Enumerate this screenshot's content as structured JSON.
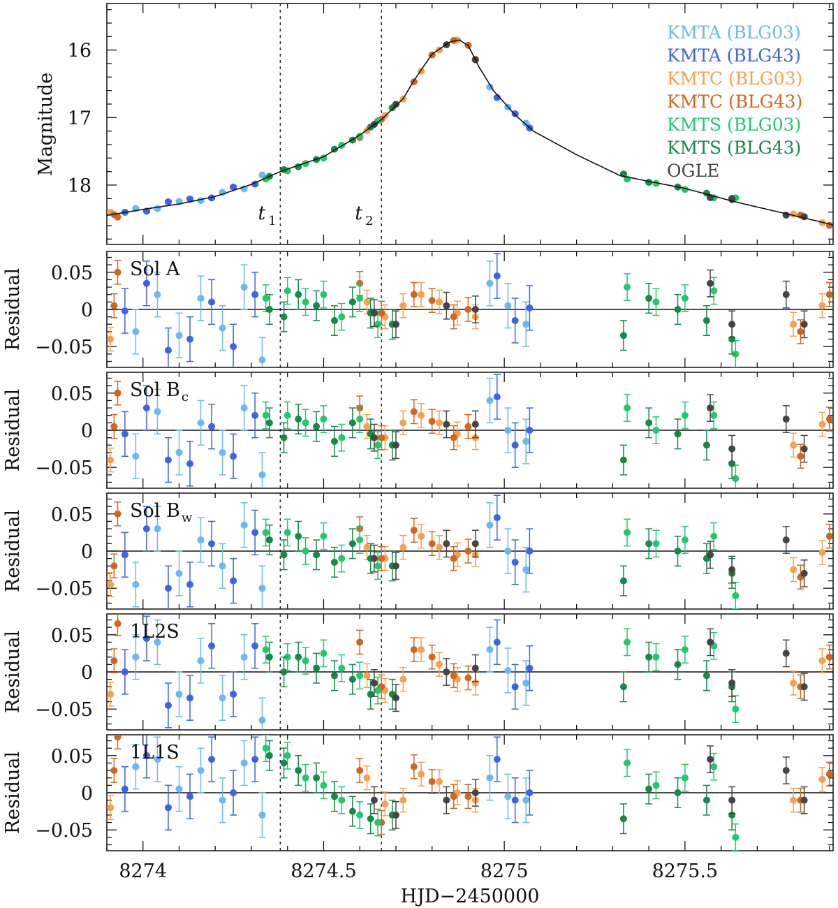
{
  "chart_data": {
    "type": "scatter",
    "title": "",
    "xlabel": "HJD−2450000",
    "xlim": [
      8273.9,
      8275.91
    ],
    "x_ticks": [
      8274,
      8274.5,
      8275,
      8275.5
    ],
    "x_tick_labels": [
      "8274",
      "8274.5",
      "8275",
      "8275.5"
    ],
    "main_panel": {
      "ylabel": "Magnitude",
      "ylim": [
        18.88,
        15.31
      ],
      "y_ticks": [
        16,
        17,
        18
      ],
      "y_tick_labels": [
        "16",
        "17",
        "18"
      ],
      "model_curve": [
        [
          8273.9,
          18.45
        ],
        [
          8274.0,
          18.36
        ],
        [
          8274.1,
          18.28
        ],
        [
          8274.2,
          18.17
        ],
        [
          8274.3,
          17.99
        ],
        [
          8274.38,
          17.8
        ],
        [
          8274.5,
          17.58
        ],
        [
          8274.6,
          17.26
        ],
        [
          8274.66,
          17.03
        ],
        [
          8274.72,
          16.72
        ],
        [
          8274.75,
          16.45
        ],
        [
          8274.8,
          16.06
        ],
        [
          8274.85,
          15.88
        ],
        [
          8274.875,
          15.85
        ],
        [
          8274.9,
          15.93
        ],
        [
          8274.93,
          16.25
        ],
        [
          8274.97,
          16.6
        ],
        [
          8275.03,
          16.96
        ],
        [
          8275.08,
          17.2
        ],
        [
          8275.2,
          17.55
        ],
        [
          8275.32,
          17.86
        ],
        [
          8275.5,
          18.05
        ],
        [
          8275.64,
          18.25
        ],
        [
          8275.8,
          18.45
        ],
        [
          8275.91,
          18.59
        ]
      ],
      "annotations": [
        {
          "text": "t",
          "sub": "1",
          "x": 8274.38
        },
        {
          "text": "t",
          "sub": "2",
          "x": 8274.66
        }
      ],
      "legend_position": "top-right"
    },
    "residual_panels": [
      {
        "key": "A",
        "label": "Sol A",
        "sub": ""
      },
      {
        "key": "Bc",
        "label": "Sol B",
        "sub": "c"
      },
      {
        "key": "Bw",
        "label": "Sol B",
        "sub": "w"
      },
      {
        "key": "L2S",
        "label": "1L2S",
        "sub": ""
      },
      {
        "key": "L1S",
        "label": "1L1S",
        "sub": ""
      }
    ],
    "residual_ylabel": "Residual",
    "residual_ylim": [
      -0.078,
      0.078
    ],
    "residual_y_ticks": [
      0.05,
      0,
      -0.05
    ],
    "residual_y_tick_labels": [
      "0.05",
      "0",
      "−0.05"
    ],
    "vertical_lines": [
      8274.38,
      8274.66
    ],
    "series": [
      {
        "name": "KMTA (BLG03)",
        "color": "#6ab8f7",
        "err": 0.03,
        "t": [
          8273.98,
          8274.04,
          8274.1,
          8274.16,
          8274.22,
          8274.28,
          8274.33,
          8274.96,
          8275.01,
          8275.06
        ],
        "res": {
          "A": [
            -0.03,
            0.02,
            -0.035,
            0.015,
            -0.025,
            0.03,
            -0.068,
            0.035,
            0.005,
            -0.02
          ],
          "Bc": [
            -0.035,
            0.025,
            -0.03,
            0.01,
            -0.03,
            0.03,
            -0.06,
            0.04,
            0.0,
            -0.015
          ],
          "Bw": [
            -0.045,
            0.03,
            -0.03,
            0.015,
            -0.02,
            0.035,
            -0.05,
            0.035,
            0.0,
            -0.025
          ],
          "L2S": [
            0.02,
            0.04,
            -0.03,
            0.015,
            -0.035,
            0.02,
            -0.065,
            0.03,
            0.002,
            -0.015
          ],
          "L1S": [
            0.035,
            0.045,
            0.005,
            0.03,
            -0.01,
            0.04,
            -0.03,
            0.02,
            -0.005,
            -0.01
          ]
        }
      },
      {
        "name": "KMTA (BLG43)",
        "color": "#3c64e4",
        "err": 0.03,
        "t": [
          8273.95,
          8274.01,
          8274.07,
          8274.13,
          8274.19,
          8274.25,
          8274.31,
          8274.98,
          8275.03,
          8275.07
        ],
        "res": {
          "A": [
            -0.002,
            0.035,
            -0.055,
            -0.04,
            0.01,
            -0.05,
            0.02,
            0.045,
            -0.015,
            0.002
          ],
          "Bc": [
            -0.005,
            0.03,
            -0.04,
            -0.045,
            0.005,
            -0.035,
            0.02,
            0.045,
            -0.02,
            0.0
          ],
          "Bw": [
            -0.005,
            0.03,
            -0.05,
            -0.045,
            0.01,
            -0.04,
            0.025,
            0.045,
            -0.015,
            0.0
          ],
          "L2S": [
            0.0,
            0.045,
            -0.045,
            -0.035,
            0.035,
            -0.03,
            0.035,
            0.04,
            -0.02,
            0.005
          ],
          "L1S": [
            0.005,
            0.05,
            -0.02,
            -0.005,
            0.045,
            0.0,
            0.045,
            0.045,
            -0.01,
            0.0
          ]
        }
      },
      {
        "name": "KMTC (BLG03)",
        "color": "#f7a050",
        "err": 0.016,
        "t": [
          8273.91,
          8274.62,
          8274.67,
          8274.72,
          8274.77,
          8274.82,
          8274.87,
          8274.92,
          8275.8,
          8275.88
        ],
        "res": {
          "A": [
            -0.04,
            0.01,
            -0.01,
            0.005,
            0.02,
            0.01,
            -0.005,
            -0.01,
            -0.02,
            0.005
          ],
          "Bc": [
            -0.04,
            0.005,
            -0.01,
            0.01,
            0.02,
            0.01,
            -0.005,
            -0.01,
            -0.02,
            0.008
          ],
          "Bw": [
            -0.045,
            0.005,
            -0.01,
            0.005,
            0.02,
            0.005,
            -0.005,
            -0.005,
            -0.025,
            -0.002
          ],
          "L2S": [
            -0.03,
            -0.005,
            -0.025,
            -0.01,
            0.03,
            0.01,
            -0.01,
            -0.015,
            -0.015,
            0.015
          ],
          "L1S": [
            -0.02,
            0.02,
            -0.015,
            -0.01,
            0.025,
            0.015,
            0.0,
            -0.01,
            -0.01,
            0.018
          ]
        }
      },
      {
        "name": "KMTC (BLG43)",
        "color": "#d2661f",
        "err": 0.016,
        "t": [
          8273.92,
          8273.93,
          8274.6,
          8274.66,
          8274.75,
          8274.8,
          8274.86,
          8274.9,
          8275.82,
          8275.9
        ],
        "res": {
          "A": [
            0.005,
            0.05,
            0.035,
            -0.005,
            0.02,
            0.012,
            -0.01,
            0.0,
            -0.03,
            0.02
          ],
          "Bc": [
            0.005,
            0.05,
            0.03,
            -0.01,
            0.025,
            0.012,
            -0.01,
            0.005,
            -0.035,
            0.015
          ],
          "Bw": [
            -0.02,
            0.05,
            0.03,
            -0.01,
            0.028,
            0.01,
            -0.01,
            0.0,
            -0.035,
            0.02
          ],
          "L2S": [
            0.015,
            0.065,
            0.04,
            -0.02,
            0.03,
            0.02,
            -0.005,
            -0.008,
            -0.02,
            0.02
          ],
          "L1S": [
            0.03,
            0.075,
            0.03,
            -0.04,
            0.035,
            0.015,
            -0.005,
            -0.005,
            -0.01,
            0.025
          ]
        }
      },
      {
        "name": "KMTS (BLG03)",
        "color": "#22c86e",
        "err": 0.018,
        "t": [
          8274.34,
          8274.4,
          8274.45,
          8274.5,
          8274.55,
          8274.6,
          8274.65,
          8275.34,
          8275.42,
          8275.5,
          8275.58,
          8275.64
        ],
        "res": {
          "A": [
            0.015,
            0.025,
            0.01,
            0.02,
            -0.01,
            0.015,
            -0.02,
            0.03,
            0.01,
            0.015,
            0.025,
            -0.06
          ],
          "Bc": [
            0.02,
            0.02,
            0.01,
            0.015,
            -0.01,
            0.015,
            -0.02,
            0.03,
            0.0,
            0.02,
            0.02,
            -0.065
          ],
          "Bw": [
            0.025,
            0.025,
            0.0,
            0.02,
            -0.01,
            0.015,
            -0.02,
            0.025,
            0.01,
            0.015,
            0.02,
            -0.06
          ],
          "L2S": [
            0.03,
            0.02,
            0.015,
            0.025,
            0.005,
            -0.005,
            -0.025,
            0.04,
            0.02,
            0.03,
            0.035,
            -0.05
          ],
          "L1S": [
            0.06,
            0.05,
            0.02,
            0.01,
            -0.01,
            -0.03,
            -0.04,
            0.04,
            0.01,
            0.02,
            0.035,
            -0.06
          ]
        }
      },
      {
        "name": "KMTS (BLG43)",
        "color": "#168a48",
        "err": 0.02,
        "t": [
          8274.35,
          8274.39,
          8274.43,
          8274.48,
          8274.53,
          8274.58,
          8274.63,
          8274.69,
          8275.33,
          8275.4,
          8275.48,
          8275.56,
          8275.63
        ],
        "res": {
          "A": [
            0.0,
            -0.01,
            0.02,
            0.005,
            -0.015,
            0.01,
            -0.005,
            -0.02,
            -0.035,
            0.015,
            0.0,
            -0.015,
            -0.04
          ],
          "Bc": [
            0.01,
            -0.01,
            0.015,
            0.005,
            -0.015,
            0.01,
            -0.005,
            -0.02,
            -0.04,
            0.01,
            -0.005,
            -0.02,
            -0.045
          ],
          "Bw": [
            0.015,
            -0.005,
            0.02,
            -0.005,
            -0.015,
            0.01,
            -0.01,
            -0.02,
            -0.04,
            0.01,
            0.0,
            -0.01,
            -0.03
          ],
          "L2S": [
            0.02,
            0.0,
            0.02,
            0.005,
            -0.005,
            -0.01,
            -0.03,
            -0.03,
            -0.02,
            0.02,
            0.01,
            -0.005,
            -0.02
          ],
          "L1S": [
            0.05,
            0.04,
            0.03,
            0.02,
            -0.005,
            -0.025,
            -0.035,
            -0.03,
            -0.035,
            0.005,
            0.0,
            -0.01,
            -0.03
          ]
        }
      },
      {
        "name": "OGLE",
        "color": "#454545",
        "err": 0.018,
        "t": [
          8274.64,
          8274.7,
          8274.84,
          8274.92,
          8275.57,
          8275.63,
          8275.78,
          8275.83
        ],
        "res": {
          "A": [
            -0.005,
            -0.02,
            0.005,
            0.0,
            0.035,
            -0.02,
            0.02,
            -0.02
          ],
          "Bc": [
            -0.01,
            -0.02,
            0.008,
            0.008,
            0.03,
            -0.025,
            0.015,
            -0.025
          ],
          "Bw": [
            -0.01,
            -0.02,
            0.01,
            0.01,
            -0.005,
            -0.025,
            0.015,
            -0.03
          ],
          "L2S": [
            -0.015,
            -0.035,
            0.0,
            0.005,
            0.04,
            -0.015,
            0.025,
            -0.02
          ],
          "L1S": [
            -0.01,
            -0.03,
            -0.01,
            0.0,
            0.045,
            -0.01,
            0.03,
            -0.01
          ]
        }
      }
    ]
  }
}
